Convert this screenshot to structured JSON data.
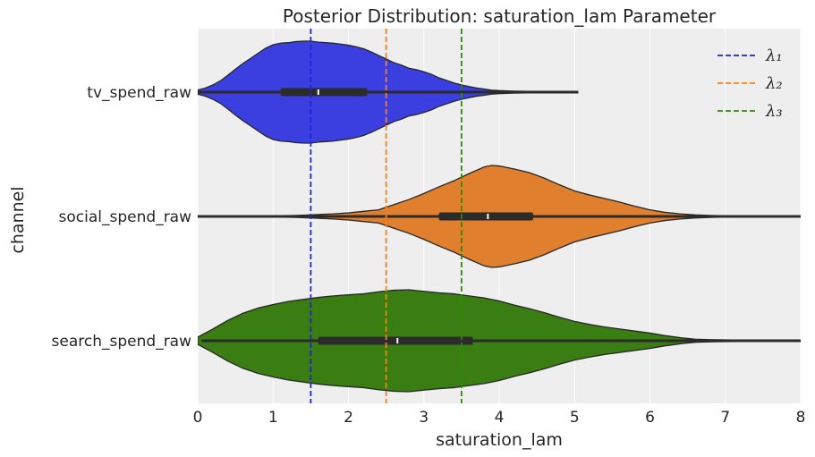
{
  "chart_data": {
    "type": "violin",
    "orientation": "horizontal",
    "title": "Posterior Distribution: saturation_lam Parameter",
    "xlabel": "saturation_lam",
    "ylabel": "channel",
    "xlim": [
      0,
      8
    ],
    "xticks": [
      0,
      1,
      2,
      3,
      4,
      5,
      6,
      7,
      8
    ],
    "grid": true,
    "legend_position": "top-right",
    "categories": [
      "tv_spend_raw",
      "social_spend_raw",
      "search_spend_raw"
    ],
    "series": [
      {
        "name": "tv_spend_raw",
        "color": "#3b3fe0",
        "box": {
          "whisker_low": 0.0,
          "q1": 1.1,
          "median": 1.6,
          "q3": 2.25,
          "whisker_high": 5.05
        },
        "density": [
          [
            0.0,
            0.04
          ],
          [
            0.1,
            0.08
          ],
          [
            0.2,
            0.14
          ],
          [
            0.3,
            0.22
          ],
          [
            0.4,
            0.33
          ],
          [
            0.5,
            0.45
          ],
          [
            0.6,
            0.56
          ],
          [
            0.7,
            0.66
          ],
          [
            0.8,
            0.76
          ],
          [
            0.9,
            0.86
          ],
          [
            1.0,
            0.93
          ],
          [
            1.1,
            0.96
          ],
          [
            1.2,
            0.97
          ],
          [
            1.3,
            0.99
          ],
          [
            1.4,
            1.0
          ],
          [
            1.5,
            1.0
          ],
          [
            1.6,
            0.98
          ],
          [
            1.7,
            0.97
          ],
          [
            1.8,
            0.96
          ],
          [
            1.9,
            0.94
          ],
          [
            2.0,
            0.92
          ],
          [
            2.1,
            0.89
          ],
          [
            2.2,
            0.85
          ],
          [
            2.3,
            0.79
          ],
          [
            2.4,
            0.72
          ],
          [
            2.5,
            0.65
          ],
          [
            2.6,
            0.58
          ],
          [
            2.7,
            0.53
          ],
          [
            2.8,
            0.47
          ],
          [
            2.9,
            0.44
          ],
          [
            3.0,
            0.4
          ],
          [
            3.1,
            0.35
          ],
          [
            3.2,
            0.28
          ],
          [
            3.3,
            0.23
          ],
          [
            3.4,
            0.18
          ],
          [
            3.5,
            0.14
          ],
          [
            3.6,
            0.11
          ],
          [
            3.7,
            0.08
          ],
          [
            3.8,
            0.06
          ],
          [
            3.9,
            0.04
          ],
          [
            4.0,
            0.03
          ],
          [
            4.2,
            0.02
          ],
          [
            4.4,
            0.015
          ],
          [
            4.6,
            0.01
          ],
          [
            4.8,
            0.006
          ],
          [
            5.05,
            0.0
          ]
        ]
      },
      {
        "name": "social_spend_raw",
        "color": "#e07f2e",
        "box": {
          "whisker_low": 0.0,
          "q1": 3.2,
          "median": 3.85,
          "q3": 4.45,
          "whisker_high": 8.0
        },
        "density": [
          [
            0.0,
            0.005
          ],
          [
            0.5,
            0.008
          ],
          [
            1.0,
            0.01
          ],
          [
            1.3,
            0.02
          ],
          [
            1.5,
            0.03
          ],
          [
            1.8,
            0.05
          ],
          [
            2.0,
            0.07
          ],
          [
            2.2,
            0.1
          ],
          [
            2.4,
            0.13
          ],
          [
            2.5,
            0.18
          ],
          [
            2.6,
            0.23
          ],
          [
            2.8,
            0.33
          ],
          [
            3.0,
            0.45
          ],
          [
            3.2,
            0.58
          ],
          [
            3.4,
            0.7
          ],
          [
            3.6,
            0.84
          ],
          [
            3.8,
            0.97
          ],
          [
            3.9,
            1.0
          ],
          [
            4.0,
            0.99
          ],
          [
            4.1,
            0.96
          ],
          [
            4.2,
            0.93
          ],
          [
            4.4,
            0.86
          ],
          [
            4.6,
            0.75
          ],
          [
            4.8,
            0.62
          ],
          [
            5.0,
            0.5
          ],
          [
            5.2,
            0.42
          ],
          [
            5.4,
            0.35
          ],
          [
            5.6,
            0.28
          ],
          [
            5.8,
            0.2
          ],
          [
            6.0,
            0.13
          ],
          [
            6.2,
            0.08
          ],
          [
            6.4,
            0.05
          ],
          [
            6.6,
            0.03
          ],
          [
            6.8,
            0.02
          ],
          [
            7.0,
            0.013
          ],
          [
            7.5,
            0.007
          ],
          [
            8.0,
            0.003
          ]
        ]
      },
      {
        "name": "search_spend_raw",
        "color": "#3a7d12",
        "box": {
          "whisker_low": 0.05,
          "q1": 1.6,
          "median": 2.65,
          "q3": 3.65,
          "whisker_high": 8.0
        },
        "density": [
          [
            0.0,
            0.07
          ],
          [
            0.2,
            0.23
          ],
          [
            0.4,
            0.4
          ],
          [
            0.6,
            0.54
          ],
          [
            0.8,
            0.64
          ],
          [
            1.0,
            0.71
          ],
          [
            1.2,
            0.77
          ],
          [
            1.4,
            0.81
          ],
          [
            1.6,
            0.85
          ],
          [
            1.8,
            0.88
          ],
          [
            2.0,
            0.9
          ],
          [
            2.2,
            0.92
          ],
          [
            2.4,
            0.96
          ],
          [
            2.6,
            0.99
          ],
          [
            2.8,
            1.0
          ],
          [
            3.0,
            0.97
          ],
          [
            3.2,
            0.94
          ],
          [
            3.4,
            0.92
          ],
          [
            3.6,
            0.88
          ],
          [
            3.8,
            0.84
          ],
          [
            4.0,
            0.78
          ],
          [
            4.2,
            0.7
          ],
          [
            4.4,
            0.63
          ],
          [
            4.6,
            0.55
          ],
          [
            4.8,
            0.46
          ],
          [
            5.0,
            0.38
          ],
          [
            5.2,
            0.32
          ],
          [
            5.4,
            0.27
          ],
          [
            5.6,
            0.23
          ],
          [
            5.8,
            0.19
          ],
          [
            6.0,
            0.15
          ],
          [
            6.2,
            0.1
          ],
          [
            6.4,
            0.06
          ],
          [
            6.6,
            0.03
          ],
          [
            6.8,
            0.022
          ],
          [
            7.0,
            0.017
          ],
          [
            7.2,
            0.013
          ],
          [
            7.5,
            0.009
          ],
          [
            8.0,
            0.004
          ]
        ]
      }
    ],
    "reference_lines": [
      {
        "label": "λ₁",
        "value": 1.5,
        "color": "#2222dd"
      },
      {
        "label": "λ₂",
        "value": 2.5,
        "color": "#ff7f0e"
      },
      {
        "label": "λ₃",
        "value": 3.5,
        "color": "#2e8b00"
      }
    ]
  }
}
